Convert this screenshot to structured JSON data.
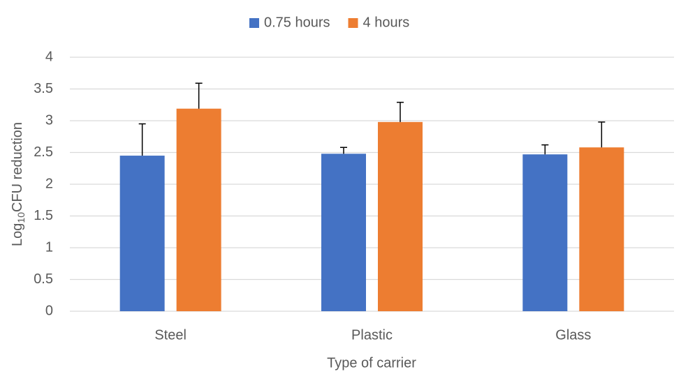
{
  "chart_data": {
    "type": "bar",
    "x_label": "Type of carrier",
    "y_label": {
      "base": "Log",
      "sub": "10",
      "rest": "CFU reduction"
    },
    "categories": [
      "Steel",
      "Plastic",
      "Glass"
    ],
    "series": [
      {
        "name": "0.75 hours",
        "color": "#4472c4",
        "values": [
          2.45,
          2.48,
          2.47
        ],
        "errors": [
          0.5,
          0.1,
          0.15
        ]
      },
      {
        "name": "4 hours",
        "color": "#ed7d31",
        "values": [
          3.19,
          2.98,
          2.58
        ],
        "errors": [
          0.4,
          0.31,
          0.4
        ]
      }
    ],
    "ylim": [
      0,
      4
    ],
    "yticks": [
      0,
      0.5,
      1,
      1.5,
      2,
      2.5,
      3,
      3.5,
      4
    ],
    "grid": true,
    "legend": "top"
  }
}
